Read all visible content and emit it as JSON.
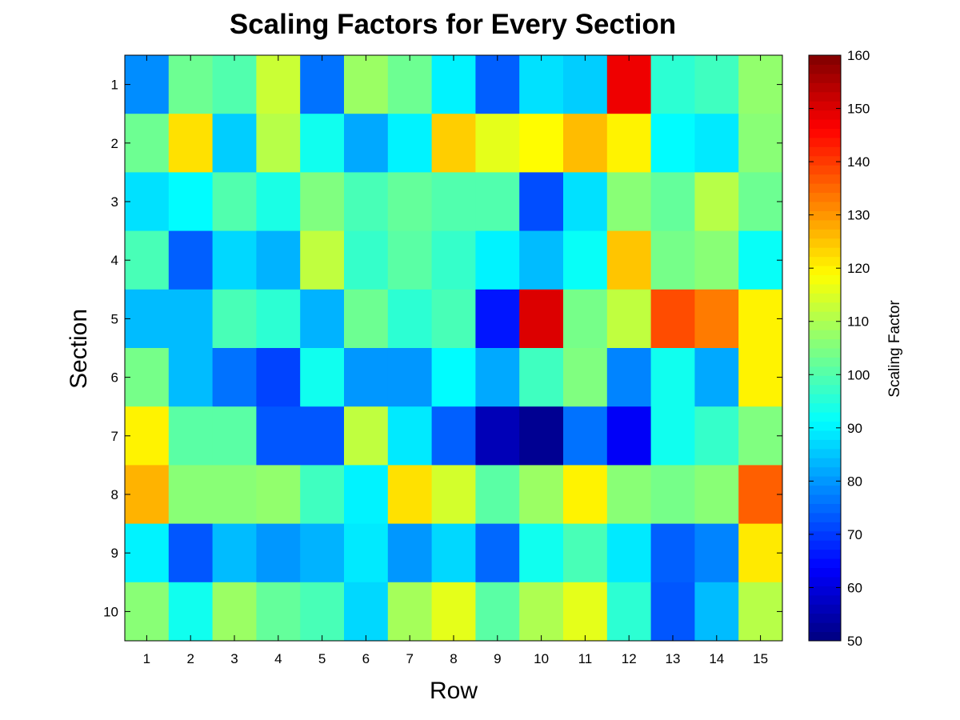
{
  "chart_data": {
    "type": "heatmap",
    "title": "Scaling Factors for Every Section",
    "xlabel": "Row",
    "ylabel": "Section",
    "x_categories": [
      "1",
      "2",
      "3",
      "4",
      "5",
      "6",
      "7",
      "8",
      "9",
      "10",
      "11",
      "12",
      "13",
      "14",
      "15"
    ],
    "y_categories": [
      "1",
      "2",
      "3",
      "4",
      "5",
      "6",
      "7",
      "8",
      "9",
      "10"
    ],
    "colormap": "jet",
    "clim": [
      50,
      160
    ],
    "colorbar": {
      "label": "Scaling Factor",
      "ticks": [
        "50",
        "60",
        "70",
        "80",
        "90",
        "100",
        "110",
        "120",
        "130",
        "140",
        "150",
        "160"
      ]
    },
    "grid": false,
    "values": [
      [
        79,
        103,
        100,
        113,
        76,
        108,
        103,
        90,
        74,
        88,
        86,
        148,
        96,
        98,
        107
      ],
      [
        103,
        122,
        86,
        111,
        93,
        82,
        90,
        124,
        116,
        119,
        126,
        120,
        91,
        89,
        106
      ],
      [
        88,
        91,
        100,
        94,
        105,
        99,
        102,
        100,
        100,
        72,
        88,
        106,
        102,
        111,
        103
      ],
      [
        99,
        74,
        87,
        83,
        112,
        97,
        101,
        97,
        90,
        84,
        92,
        125,
        104,
        106,
        92
      ],
      [
        84,
        84,
        99,
        96,
        83,
        103,
        96,
        99,
        66,
        150,
        104,
        112,
        138,
        133,
        120
      ],
      [
        104,
        84,
        76,
        71,
        93,
        80,
        80,
        91,
        82,
        98,
        105,
        78,
        93,
        82,
        120
      ],
      [
        120,
        101,
        101,
        73,
        73,
        112,
        89,
        74,
        56,
        52,
        76,
        63,
        93,
        97,
        105
      ],
      [
        127,
        106,
        106,
        107,
        98,
        90,
        122,
        114,
        101,
        108,
        120,
        106,
        104,
        106,
        136
      ],
      [
        90,
        73,
        84,
        80,
        83,
        89,
        80,
        87,
        75,
        93,
        99,
        89,
        74,
        78,
        121
      ],
      [
        106,
        93,
        108,
        102,
        99,
        87,
        109,
        116,
        101,
        110,
        116,
        96,
        73,
        84,
        111
      ]
    ]
  }
}
